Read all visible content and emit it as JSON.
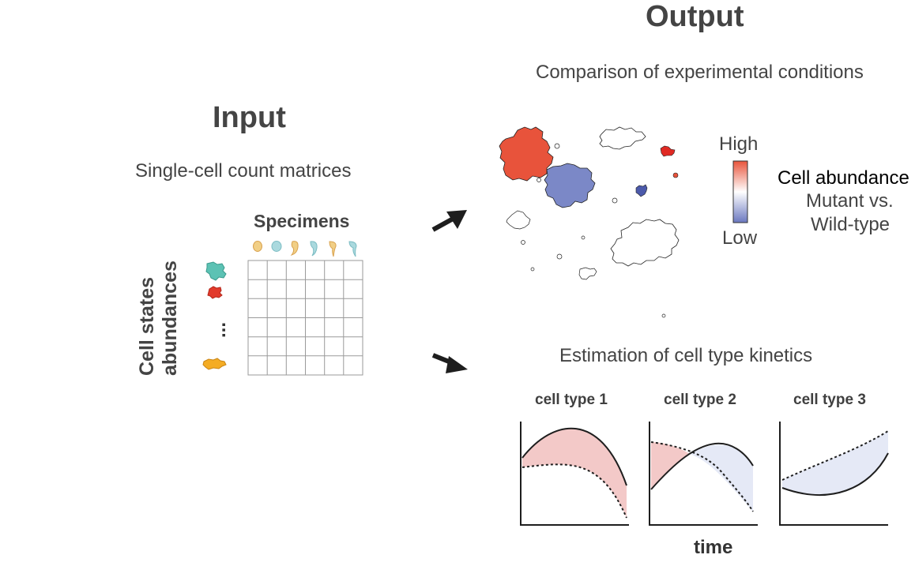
{
  "input": {
    "title": "Input",
    "subtitle": "Single-cell count matrices",
    "matrix": {
      "column_label": "Specimens",
      "row_label_line1": "Cell states",
      "row_label_line2": "abundances",
      "ellipsis": "..."
    }
  },
  "output": {
    "title": "Output",
    "comparison": {
      "subtitle": "Comparison of experimental conditions",
      "legend": {
        "high": "High",
        "low": "Low",
        "title": "Cell abundance",
        "subtitle_line1": "Mutant vs.",
        "subtitle_line2": "Wild-type",
        "high_color": "#e8543b",
        "low_color": "#6b78c0"
      }
    },
    "kinetics": {
      "subtitle": "Estimation of cell type kinetics",
      "xlabel": "time",
      "panels": [
        {
          "title": "cell type 1"
        },
        {
          "title": "cell type 2"
        },
        {
          "title": "cell type 3"
        }
      ],
      "fill_up_color": "#f3c9c8",
      "fill_down_color": "#e5e9f6"
    }
  }
}
